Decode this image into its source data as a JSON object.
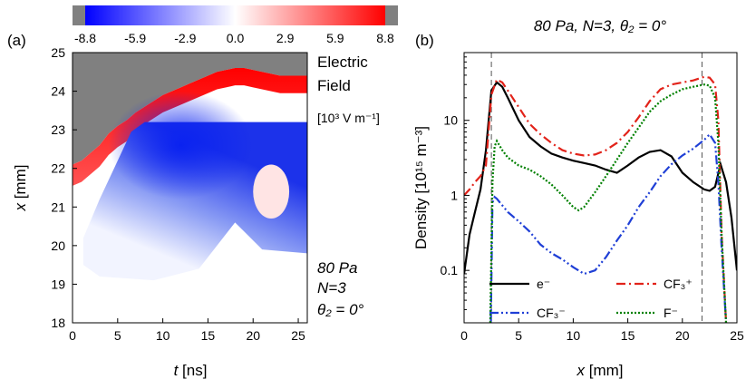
{
  "colorbar": {
    "labels": [
      "-8.8",
      "-5.9",
      "-2.9",
      "0.0",
      "2.9",
      "5.9",
      "8.8"
    ],
    "colors": {
      "negative": "#0000ff",
      "zero": "#ffffff",
      "positive": "#ff0000",
      "saturated": "#808080"
    }
  },
  "panel_a": {
    "label": "(a)",
    "field_title_line1": "Electric",
    "field_title_line2": "Field",
    "field_units": "[10³ V m⁻¹]",
    "condition_pressure": "80 Pa",
    "condition_n": "N=3",
    "condition_theta": "θ₂ = 0°"
  },
  "panel_b": {
    "label": "(b)",
    "title": "80 Pa, N=3, θ₂ = 0°"
  },
  "chart_data": [
    {
      "type": "heatmap",
      "xlabel": "t [ns]",
      "ylabel": "x [mm]",
      "xlim": [
        0,
        26
      ],
      "ylim": [
        18,
        25
      ],
      "x_ticks": [
        "0",
        "5",
        "10",
        "15",
        "20",
        "25"
      ],
      "y_ticks": [
        "18",
        "19",
        "20",
        "21",
        "22",
        "23",
        "24",
        "25"
      ],
      "zlim": [
        -8.8,
        8.8
      ],
      "sheath_edge_x_mm": [
        [
          0,
          22.1
        ],
        [
          1,
          22.2
        ],
        [
          2,
          22.4
        ],
        [
          3,
          22.6
        ],
        [
          4,
          22.9
        ],
        [
          5,
          23.1
        ],
        [
          6,
          23.25
        ],
        [
          7,
          23.45
        ],
        [
          8,
          23.6
        ],
        [
          9,
          23.75
        ],
        [
          10,
          23.9
        ],
        [
          11,
          24.0
        ],
        [
          12,
          24.1
        ],
        [
          13,
          24.2
        ],
        [
          14,
          24.3
        ],
        [
          15,
          24.4
        ],
        [
          16,
          24.5
        ],
        [
          17,
          24.55
        ],
        [
          18,
          24.6
        ],
        [
          19,
          24.6
        ],
        [
          20,
          24.55
        ],
        [
          21,
          24.5
        ],
        [
          22,
          24.45
        ],
        [
          23,
          24.4
        ],
        [
          24,
          24.4
        ],
        [
          25,
          24.4
        ],
        [
          26,
          24.4
        ]
      ],
      "negative_core": {
        "t_ns": 12,
        "x_mm": 22.6,
        "value": -8.8
      },
      "positive_spot": {
        "t_ns": 22,
        "x_mm": 21.4,
        "value": 1.5
      }
    },
    {
      "type": "line",
      "xlabel": "x [mm]",
      "ylabel": "Density [10¹⁵ m⁻³]",
      "xlim": [
        0,
        25
      ],
      "ylim": [
        0.02,
        80
      ],
      "yscale": "log",
      "x_ticks": [
        "0",
        "5",
        "10",
        "15",
        "20",
        "25"
      ],
      "y_ticks": [
        {
          "value": 0.1,
          "label": "0.1"
        },
        {
          "value": 1,
          "label": "1"
        },
        {
          "value": 10,
          "label": "10"
        }
      ],
      "vlines": [
        2.5,
        21.8
      ],
      "legend": [
        {
          "label": "e⁻",
          "color": "#000000",
          "dash": "solid"
        },
        {
          "label": "CF₃⁺",
          "color": "#e2231a",
          "dash": "dashdot"
        },
        {
          "label": "CF₃⁻",
          "color": "#1f3fd6",
          "dash": "dashdotdot"
        },
        {
          "label": "F⁻",
          "color": "#008000",
          "dash": "dot"
        }
      ],
      "series": [
        {
          "name": "e⁻",
          "color": "#000000",
          "dash": "solid",
          "x": [
            0,
            0.5,
            1,
            1.5,
            2,
            2.5,
            3,
            3.5,
            4,
            5,
            6,
            7,
            8,
            9,
            10,
            11,
            12,
            13,
            14,
            15,
            16,
            17,
            18,
            19,
            20,
            21,
            22,
            22.5,
            23,
            23.5,
            24,
            24.5,
            25
          ],
          "y": [
            0.09,
            0.3,
            0.6,
            1.2,
            4,
            25,
            32,
            28,
            20,
            10,
            6,
            4.5,
            3.6,
            3.2,
            2.9,
            2.7,
            2.5,
            2.2,
            2.0,
            2.5,
            3.2,
            3.8,
            4.0,
            3.3,
            2.0,
            1.5,
            1.2,
            1.15,
            1.3,
            2.6,
            1.5,
            0.5,
            0.1
          ]
        },
        {
          "name": "CF₃⁺",
          "color": "#e2231a",
          "dash": "dashdot",
          "x": [
            0,
            0.5,
            1,
            1.5,
            2,
            2.5,
            3,
            3.5,
            4,
            5,
            6,
            7,
            8,
            9,
            10,
            11,
            12,
            13,
            14,
            15,
            16,
            17,
            18,
            19,
            20,
            21,
            22,
            22.5,
            23,
            23.3,
            23.6,
            24
          ],
          "y": [
            1.0,
            1.2,
            1.5,
            1.8,
            2.5,
            22,
            35,
            32,
            25,
            15,
            9,
            6.5,
            5,
            4,
            3.6,
            3.4,
            3.5,
            4.0,
            5.0,
            7.0,
            11,
            18,
            26,
            30,
            32,
            34,
            38,
            37,
            30,
            10,
            0.3,
            0.02
          ]
        },
        {
          "name": "CF₃⁻",
          "color": "#1f3fd6",
          "dash": "dashdotdot",
          "x": [
            2.45,
            2.6,
            2.8,
            3,
            4,
            5,
            6,
            7,
            8,
            9,
            10,
            11,
            12,
            13,
            14,
            15,
            16,
            17,
            18,
            19,
            20,
            21,
            22,
            22.5,
            23,
            23.3,
            23.6,
            24
          ],
          "y": [
            0.02,
            0.8,
            0.95,
            0.9,
            0.6,
            0.45,
            0.33,
            0.22,
            0.17,
            0.14,
            0.11,
            0.09,
            0.1,
            0.15,
            0.25,
            0.4,
            0.7,
            1.1,
            1.8,
            2.6,
            3.4,
            4.2,
            5.5,
            6.5,
            5,
            1.5,
            0.2,
            0.02
          ]
        },
        {
          "name": "F⁻",
          "color": "#008000",
          "dash": "dot",
          "x": [
            2.4,
            2.6,
            2.8,
            3,
            3.5,
            4,
            5,
            6,
            7,
            8,
            9,
            10,
            10.5,
            11,
            12,
            13,
            14,
            15,
            16,
            17,
            18,
            19,
            20,
            21,
            22,
            22.5,
            23,
            23.3,
            23.6,
            24
          ],
          "y": [
            0.02,
            1.5,
            4.5,
            5.3,
            4.0,
            3.2,
            2.5,
            2.2,
            1.8,
            1.4,
            1.0,
            0.7,
            0.63,
            0.7,
            1.1,
            1.8,
            3.0,
            5.0,
            8.0,
            13,
            18,
            22,
            26,
            28,
            30,
            29,
            20,
            5,
            0.3,
            0.02
          ]
        }
      ]
    }
  ]
}
